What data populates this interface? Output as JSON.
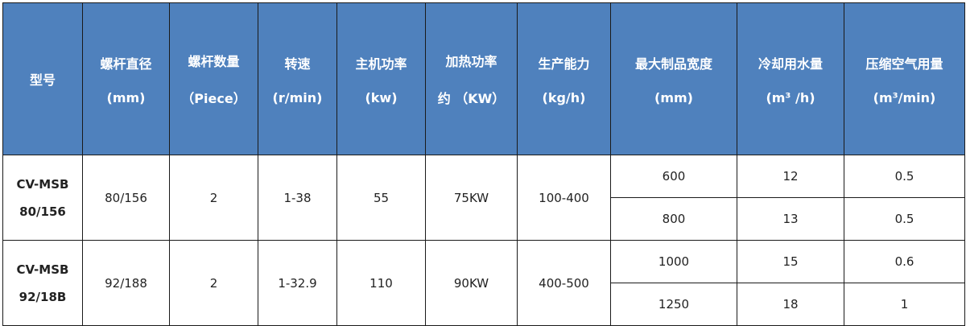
{
  "headers": [
    {
      "l1": "型号",
      "l2": ""
    },
    {
      "l1": "螺杆直径",
      "l2": "(mm)"
    },
    {
      "l1": "螺杆数量",
      "l2": "（Piece）"
    },
    {
      "l1": "转速",
      "l2": "(r/min)"
    },
    {
      "l1": "主机功率",
      "l2": "(kw)"
    },
    {
      "l1": "加热功率",
      "l2": "约 （KW）"
    },
    {
      "l1": "生产能力",
      "l2": "(kg/h)"
    },
    {
      "l1": "最大制品宽度",
      "l2": "(mm)"
    },
    {
      "l1": "冷却用水量",
      "l2": "(m³ /h)"
    },
    {
      "l1": "压缩空气用量",
      "l2": "(m³/min)"
    }
  ],
  "rows": [
    {
      "model_l1": "CV-MSB",
      "model_l2": "80/156",
      "screw_diameter": "80/156",
      "screw_count": "2",
      "speed": "1-38",
      "main_power": "55",
      "heating_power": "75KW",
      "capacity": "100-400",
      "sub": [
        {
          "width": "600",
          "water": "12",
          "air": "0.5"
        },
        {
          "width": "800",
          "water": "13",
          "air": "0.5"
        }
      ]
    },
    {
      "model_l1": "CV-MSB",
      "model_l2": "92/18B",
      "screw_diameter": "92/188",
      "screw_count": "2",
      "speed": "1-32.9",
      "main_power": "110",
      "heating_power": "90KW",
      "capacity": "400-500",
      "sub": [
        {
          "width": "1000",
          "water": "15",
          "air": "0.6"
        },
        {
          "width": "1250",
          "water": "18",
          "air": "1"
        }
      ]
    }
  ],
  "colors": {
    "header_bg": "#4f81bd",
    "header_text": "#ffffff"
  }
}
